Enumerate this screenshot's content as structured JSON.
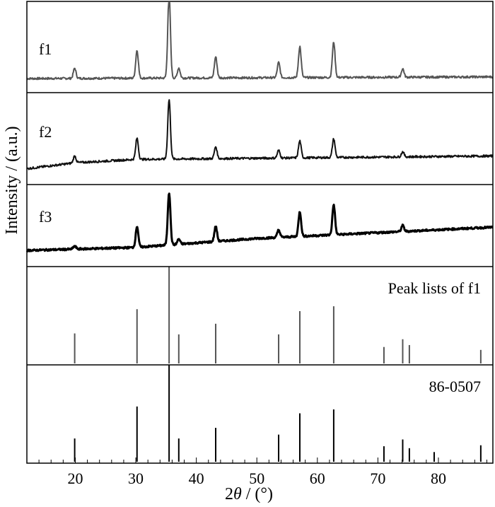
{
  "chart_data": {
    "type": "line",
    "xlabel_prefix": "2",
    "xlabel_symbol": "θ",
    "xlabel_suffix": " / (°)",
    "ylabel": "Intensity / (a.u.)",
    "xlim": [
      12,
      89
    ],
    "xticks": [
      20,
      30,
      40,
      50,
      60,
      70,
      80
    ],
    "colors": {
      "f1": "#555555",
      "f2": "#111111",
      "f3": "#000000",
      "peaks_f1": "#555555",
      "ref": "#000000"
    },
    "panels": [
      {
        "id": "f1",
        "label": "f1",
        "style": "trace",
        "baseline": [
          [
            12,
            0.1
          ],
          [
            89,
            0.12
          ]
        ],
        "peaks": [
          {
            "x": 19.9,
            "y": 0.12
          },
          {
            "x": 30.2,
            "y": 0.33
          },
          {
            "x": 35.5,
            "y": 1.0
          },
          {
            "x": 37.1,
            "y": 0.12
          },
          {
            "x": 43.2,
            "y": 0.25
          },
          {
            "x": 53.6,
            "y": 0.18
          },
          {
            "x": 57.1,
            "y": 0.37
          },
          {
            "x": 62.7,
            "y": 0.42
          },
          {
            "x": 74.1,
            "y": 0.1
          }
        ]
      },
      {
        "id": "f2",
        "label": "f2",
        "style": "trace",
        "baseline": [
          [
            12,
            0.12
          ],
          [
            20,
            0.19
          ],
          [
            30,
            0.23
          ],
          [
            89,
            0.27
          ]
        ],
        "peaks": [
          {
            "x": 19.9,
            "y": 0.08
          },
          {
            "x": 30.2,
            "y": 0.25
          },
          {
            "x": 35.5,
            "y": 0.7
          },
          {
            "x": 43.2,
            "y": 0.14
          },
          {
            "x": 53.6,
            "y": 0.09
          },
          {
            "x": 57.1,
            "y": 0.2
          },
          {
            "x": 62.7,
            "y": 0.22
          },
          {
            "x": 74.1,
            "y": 0.06
          }
        ]
      },
      {
        "id": "f3",
        "label": "f3",
        "style": "trace",
        "baseline": [
          [
            12,
            0.14
          ],
          [
            30,
            0.18
          ],
          [
            50,
            0.3
          ],
          [
            89,
            0.45
          ]
        ],
        "peaks": [
          {
            "x": 19.9,
            "y": 0.04
          },
          {
            "x": 30.2,
            "y": 0.28
          },
          {
            "x": 35.5,
            "y": 0.7
          },
          {
            "x": 37.1,
            "y": 0.07
          },
          {
            "x": 43.2,
            "y": 0.2
          },
          {
            "x": 53.6,
            "y": 0.1
          },
          {
            "x": 57.1,
            "y": 0.33
          },
          {
            "x": 62.7,
            "y": 0.4
          },
          {
            "x": 74.1,
            "y": 0.08
          }
        ]
      },
      {
        "id": "peak-list",
        "label": "Peak lists of f1",
        "style": "sticks",
        "peaks": [
          {
            "x": 19.9,
            "y": 0.31
          },
          {
            "x": 30.2,
            "y": 0.56
          },
          {
            "x": 35.5,
            "y": 1.0
          },
          {
            "x": 37.1,
            "y": 0.3
          },
          {
            "x": 43.2,
            "y": 0.41
          },
          {
            "x": 53.6,
            "y": 0.3
          },
          {
            "x": 57.1,
            "y": 0.54
          },
          {
            "x": 62.7,
            "y": 0.59
          },
          {
            "x": 71.0,
            "y": 0.17
          },
          {
            "x": 74.1,
            "y": 0.25
          },
          {
            "x": 75.2,
            "y": 0.19
          },
          {
            "x": 87.0,
            "y": 0.14
          }
        ]
      },
      {
        "id": "ref",
        "label": "86-0507",
        "style": "sticks",
        "peaks": [
          {
            "x": 19.9,
            "y": 0.24
          },
          {
            "x": 30.2,
            "y": 0.57
          },
          {
            "x": 35.5,
            "y": 1.0
          },
          {
            "x": 37.1,
            "y": 0.24
          },
          {
            "x": 43.2,
            "y": 0.35
          },
          {
            "x": 53.6,
            "y": 0.28
          },
          {
            "x": 57.1,
            "y": 0.5
          },
          {
            "x": 62.7,
            "y": 0.54
          },
          {
            "x": 71.0,
            "y": 0.16
          },
          {
            "x": 74.1,
            "y": 0.23
          },
          {
            "x": 75.2,
            "y": 0.14
          },
          {
            "x": 79.3,
            "y": 0.1
          },
          {
            "x": 87.0,
            "y": 0.17
          }
        ]
      }
    ]
  }
}
